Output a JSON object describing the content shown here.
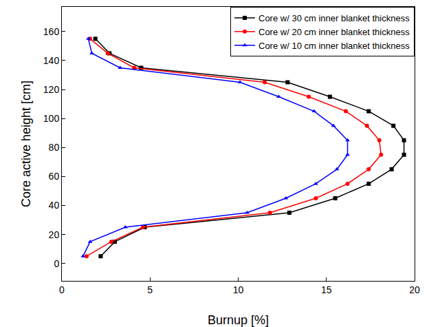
{
  "chart_data": {
    "type": "line",
    "x_label": "Burnup [%]",
    "y_label": "Core active height [cm]",
    "xlim": [
      0,
      20
    ],
    "xticks": [
      0,
      5,
      10,
      15,
      20
    ],
    "ylim": [
      -12,
      177
    ],
    "yticks": [
      0,
      20,
      40,
      60,
      80,
      100,
      120,
      140,
      160
    ],
    "grid": false,
    "legend": "upper right",
    "series": [
      {
        "name": "Core w/ 30 cm inner blanket thickness",
        "color": "#000000",
        "marker": "square",
        "line_style": "solid",
        "x": [
          2.2,
          3.0,
          4.7,
          12.9,
          15.5,
          17.4,
          18.7,
          19.4,
          19.4,
          18.8,
          17.4,
          15.2,
          12.8,
          4.5,
          2.7,
          1.9
        ],
        "y": [
          5,
          15,
          25,
          35,
          45,
          55,
          65,
          75,
          85,
          95,
          105,
          115,
          125,
          135,
          145,
          155
        ]
      },
      {
        "name": "Core w/ 20 cm inner blanket thickness",
        "color": "#ff0000",
        "marker": "circle",
        "line_style": "solid",
        "x": [
          1.4,
          2.8,
          4.6,
          11.8,
          14.4,
          16.2,
          17.4,
          18.1,
          18.0,
          17.3,
          16.1,
          14.0,
          11.5,
          4.1,
          2.6,
          1.6
        ],
        "y": [
          5,
          15,
          25,
          35,
          45,
          55,
          65,
          75,
          85,
          95,
          105,
          115,
          125,
          135,
          145,
          155
        ]
      },
      {
        "name": "Core w/ 10 cm inner blanket thickness",
        "color": "#0000ff",
        "marker": "triangle",
        "line_style": "solid",
        "x": [
          1.2,
          1.6,
          3.6,
          10.5,
          12.7,
          14.4,
          15.6,
          16.2,
          16.2,
          15.4,
          14.3,
          12.3,
          10.1,
          3.3,
          1.7,
          1.5
        ],
        "y": [
          5,
          15,
          25,
          35,
          45,
          55,
          65,
          75,
          85,
          95,
          105,
          115,
          125,
          135,
          145,
          155
        ]
      }
    ]
  }
}
